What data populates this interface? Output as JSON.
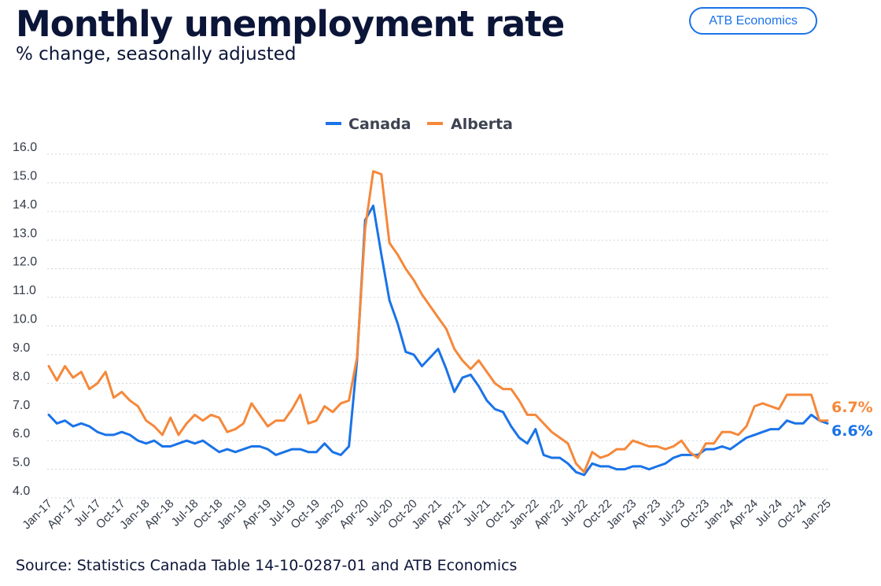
{
  "header": {
    "title": "Monthly unemployment rate",
    "subtitle": "% change, seasonally adjusted",
    "badge": "ATB Economics"
  },
  "footer": {
    "source": "Source: Statistics Canada Table 14-10-0287-01 and ATB Economics"
  },
  "colors": {
    "canada": "#1a73e8",
    "alberta": "#f5883a",
    "grid": "#cfd3da"
  },
  "end_labels": {
    "alberta": "6.7%",
    "canada": "6.6%"
  },
  "chart_data": {
    "type": "line",
    "title": "Monthly unemployment rate",
    "subtitle": "% change, seasonally adjusted",
    "xlabel": "",
    "ylabel": "",
    "ylim": [
      4.0,
      16.0
    ],
    "y_ticks": [
      "16.0",
      "15.0",
      "14.0",
      "13.0",
      "12.0",
      "11.0",
      "10.0",
      "9.0",
      "8.0",
      "7.0",
      "6.0",
      "5.0",
      "4.0"
    ],
    "grid": true,
    "legend_position": "top-center",
    "x_tick_labels": [
      "Jan-17",
      "Apr-17",
      "Jul-17",
      "Oct-17",
      "Jan-18",
      "Apr-18",
      "Jul-18",
      "Oct-18",
      "Jan-19",
      "Apr-19",
      "Jul-19",
      "Oct-19",
      "Jan-20",
      "Apr-20",
      "Jul-20",
      "Oct-20",
      "Jan-21",
      "Apr-21",
      "Jul-21",
      "Oct-21",
      "Jan-22",
      "Apr-22",
      "Jul-22",
      "Oct-22",
      "Jan-23",
      "Apr-23",
      "Jul-23",
      "Oct-23",
      "Jan-24",
      "Apr-24",
      "Jul-24",
      "Oct-24",
      "Jan-25"
    ],
    "series": [
      {
        "name": "Canada",
        "values": [
          6.9,
          6.6,
          6.7,
          6.5,
          6.6,
          6.5,
          6.3,
          6.2,
          6.2,
          6.3,
          6.2,
          6.0,
          5.9,
          6.0,
          5.8,
          5.8,
          5.9,
          6.0,
          5.9,
          6.0,
          5.8,
          5.6,
          5.7,
          5.6,
          5.7,
          5.8,
          5.8,
          5.7,
          5.5,
          5.6,
          5.7,
          5.7,
          5.6,
          5.6,
          5.9,
          5.6,
          5.5,
          5.8,
          8.8,
          13.7,
          14.2,
          12.5,
          10.9,
          10.1,
          9.1,
          9.0,
          8.6,
          8.9,
          9.2,
          8.5,
          7.7,
          8.2,
          8.3,
          7.9,
          7.4,
          7.1,
          7.0,
          6.5,
          6.1,
          5.9,
          6.4,
          5.5,
          5.4,
          5.4,
          5.2,
          4.9,
          4.8,
          5.2,
          5.1,
          5.1,
          5.0,
          5.0,
          5.1,
          5.1,
          5.0,
          5.1,
          5.2,
          5.4,
          5.5,
          5.5,
          5.5,
          5.7,
          5.7,
          5.8,
          5.7,
          5.9,
          6.1,
          6.2,
          6.3,
          6.4,
          6.4,
          6.7,
          6.6,
          6.6,
          6.9,
          6.7,
          6.6
        ]
      },
      {
        "name": "Alberta",
        "values": [
          8.6,
          8.1,
          8.6,
          8.2,
          8.4,
          7.8,
          8.0,
          8.4,
          7.5,
          7.7,
          7.4,
          7.2,
          6.7,
          6.5,
          6.2,
          6.8,
          6.2,
          6.6,
          6.9,
          6.7,
          6.9,
          6.8,
          6.3,
          6.4,
          6.6,
          7.3,
          6.9,
          6.5,
          6.7,
          6.7,
          7.1,
          7.6,
          6.6,
          6.7,
          7.2,
          7.0,
          7.3,
          7.4,
          8.9,
          13.4,
          15.4,
          15.3,
          12.9,
          12.5,
          12.0,
          11.6,
          11.1,
          10.7,
          10.3,
          9.9,
          9.2,
          8.8,
          8.5,
          8.8,
          8.4,
          8.0,
          7.8,
          7.8,
          7.4,
          6.9,
          6.9,
          6.6,
          6.3,
          6.1,
          5.9,
          5.2,
          4.9,
          5.6,
          5.4,
          5.5,
          5.7,
          5.7,
          6.0,
          5.9,
          5.8,
          5.8,
          5.7,
          5.8,
          6.0,
          5.6,
          5.4,
          5.9,
          5.9,
          6.3,
          6.3,
          6.2,
          6.5,
          7.2,
          7.3,
          7.2,
          7.1,
          7.6,
          7.6,
          7.6,
          7.6,
          6.7,
          6.7
        ]
      }
    ]
  }
}
